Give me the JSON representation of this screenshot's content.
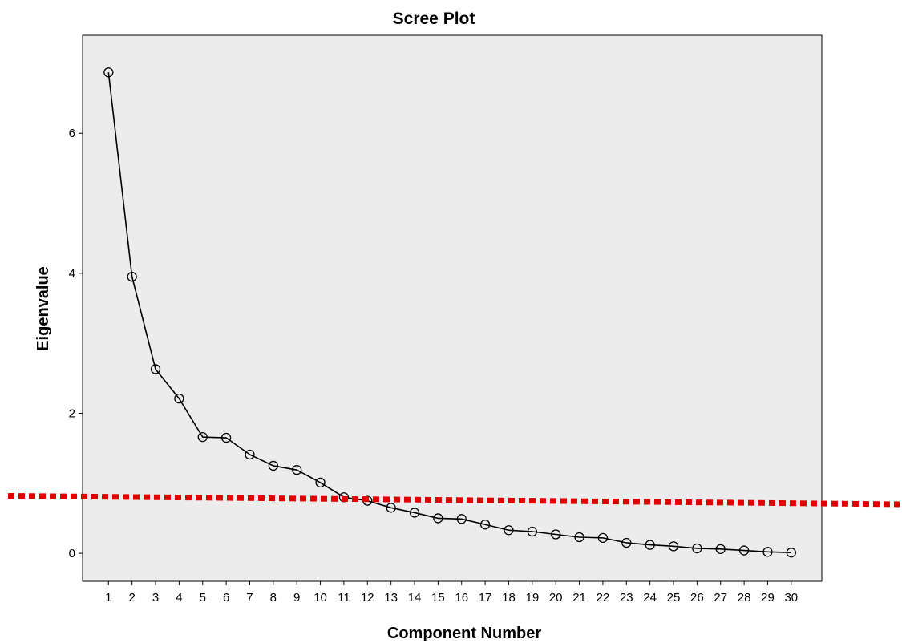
{
  "chart_data": {
    "type": "line",
    "title": "Scree Plot",
    "xlabel": "Component Number",
    "ylabel": "Eigenvalue",
    "x": [
      1,
      2,
      3,
      4,
      5,
      6,
      7,
      8,
      9,
      10,
      11,
      12,
      13,
      14,
      15,
      16,
      17,
      18,
      19,
      20,
      21,
      22,
      23,
      24,
      25,
      26,
      27,
      28,
      29,
      30
    ],
    "x_ticks": [
      "1",
      "2",
      "3",
      "4",
      "5",
      "6",
      "7",
      "8",
      "9",
      "10",
      "11",
      "12",
      "13",
      "14",
      "15",
      "16",
      "17",
      "18",
      "19",
      "20",
      "21",
      "22",
      "23",
      "24",
      "25",
      "26",
      "27",
      "28",
      "29",
      "30"
    ],
    "y_ticks": [
      "0",
      "2",
      "4",
      "6"
    ],
    "ylim": [
      -0.4,
      7.4
    ],
    "xlim": [
      -0.1,
      31.3
    ],
    "series": [
      {
        "values": [
          6.87,
          3.95,
          2.63,
          2.21,
          1.66,
          1.65,
          1.41,
          1.25,
          1.19,
          1.01,
          0.8,
          0.75,
          0.65,
          0.58,
          0.5,
          0.49,
          0.41,
          0.33,
          0.31,
          0.27,
          0.23,
          0.22,
          0.15,
          0.12,
          0.1,
          0.07,
          0.06,
          0.04,
          0.02,
          0.01
        ],
        "color": "#000000"
      }
    ],
    "reference_line": {
      "y_left": 0.82,
      "y_right": 0.7,
      "color": "#e00000",
      "style": "dotted"
    },
    "plot_background": "#ececec",
    "grid": false,
    "legend": false
  }
}
